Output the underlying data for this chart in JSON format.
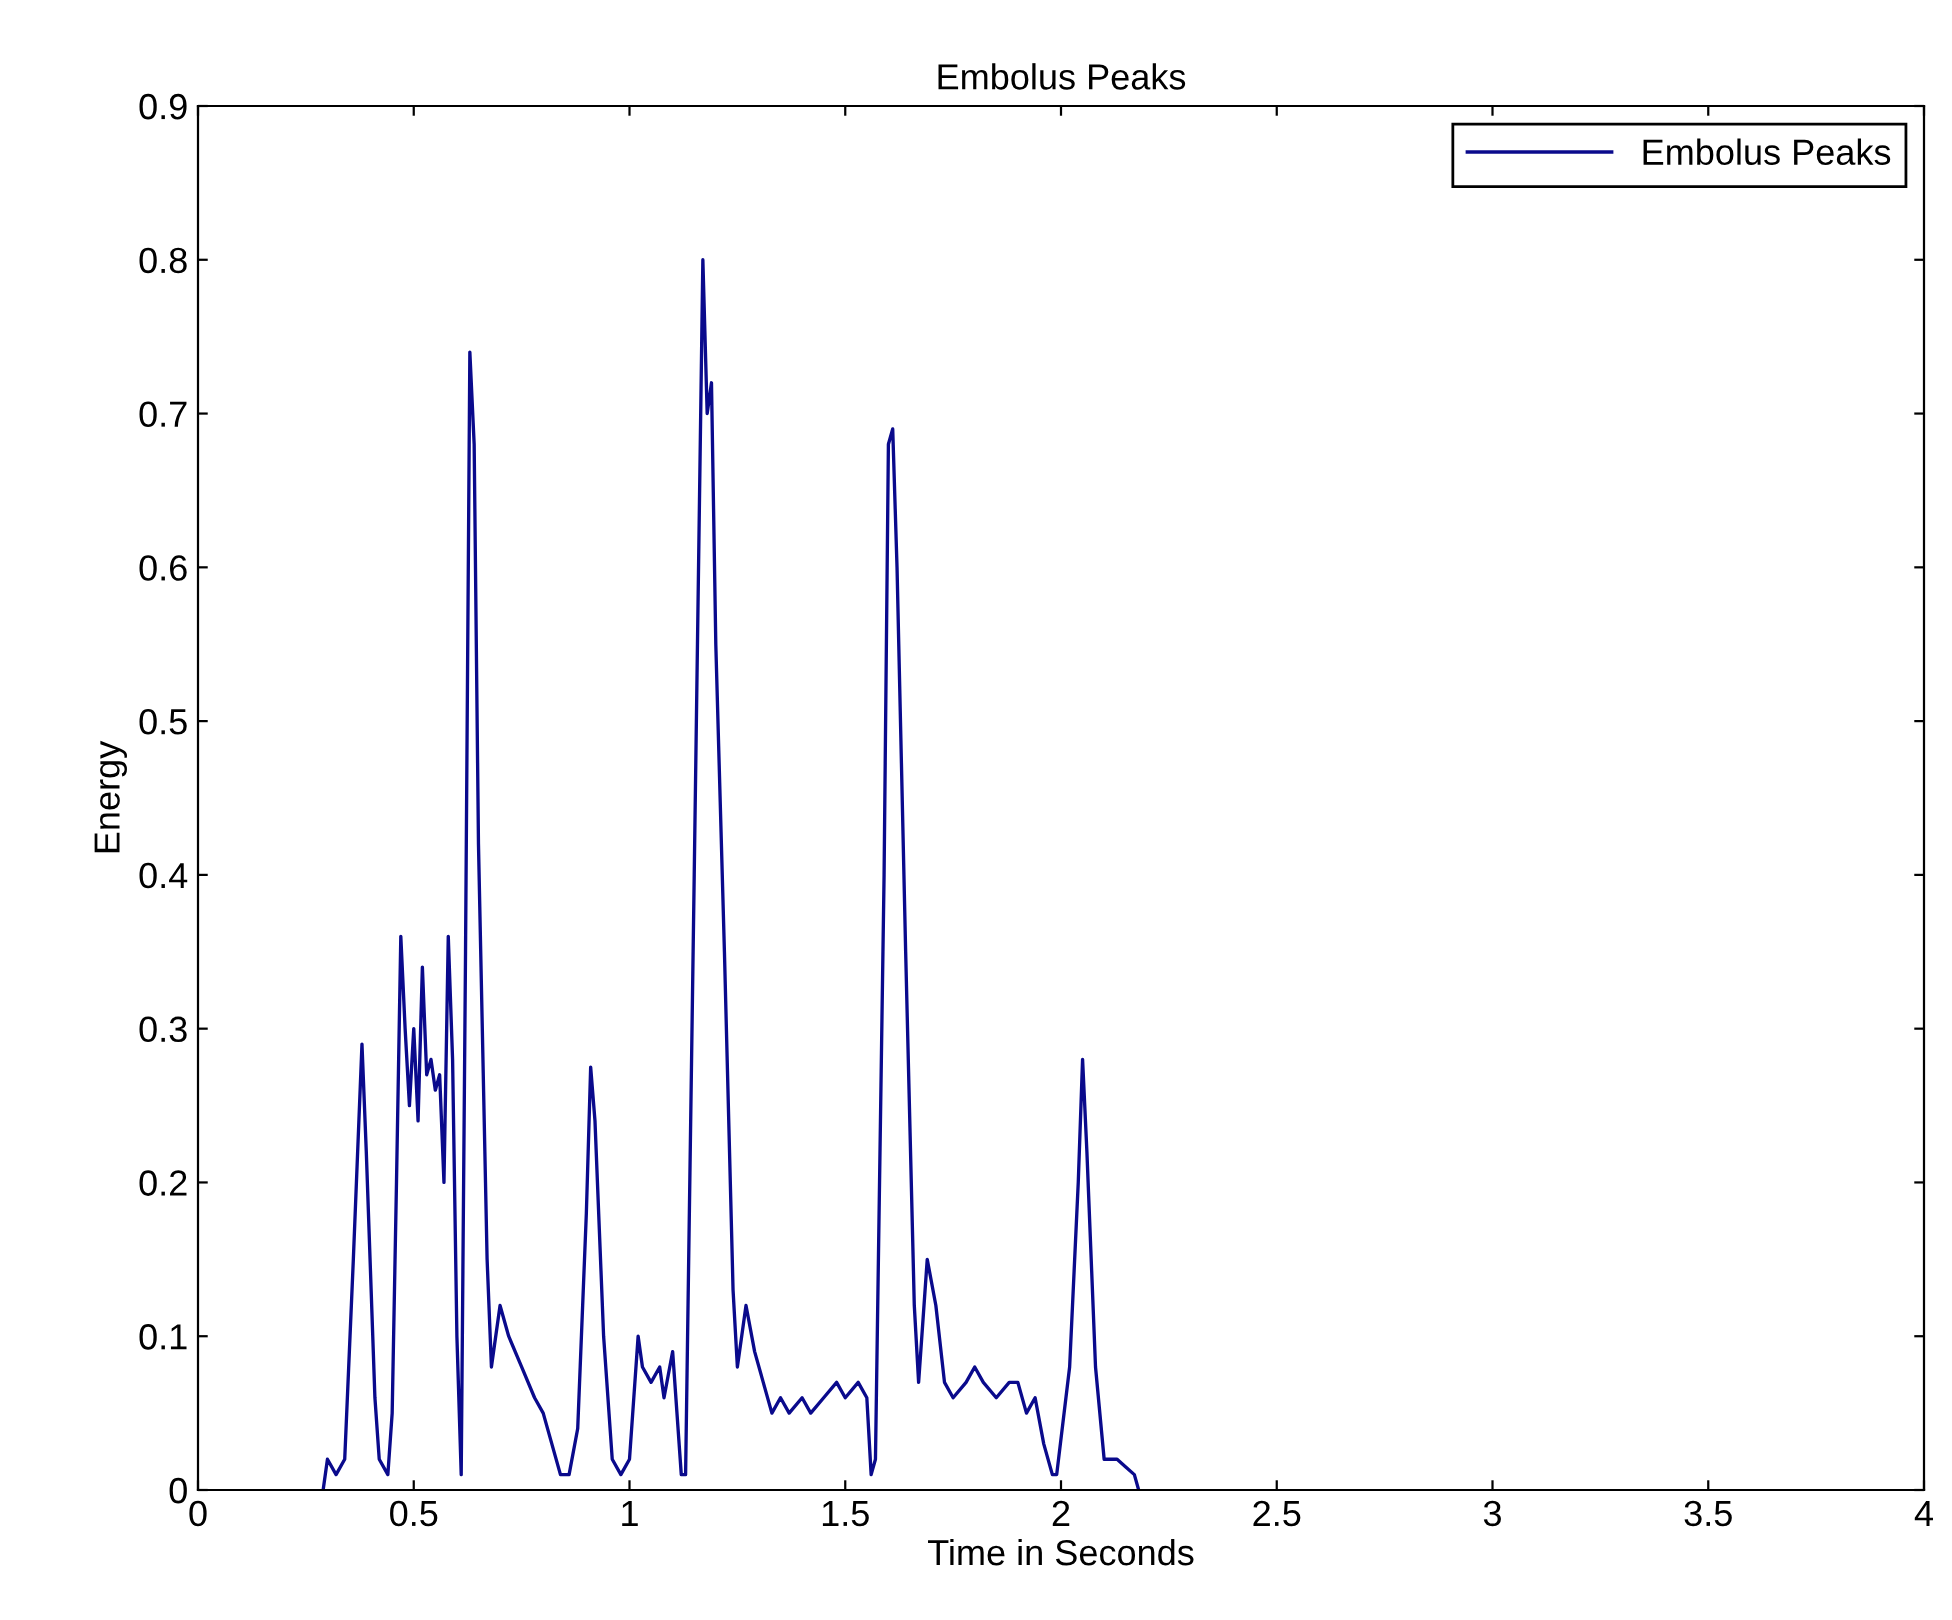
{
  "chart_data": {
    "type": "line",
    "title": "Embolus Peaks",
    "xlabel": "Time in Seconds",
    "ylabel": "Energy",
    "xlim": [
      0,
      4
    ],
    "xticks": [
      0,
      0.5,
      1,
      1.5,
      2,
      2.5,
      3,
      3.5,
      4
    ],
    "ylim": [
      0,
      0.9
    ],
    "yticks": [
      0,
      0.1,
      0.2,
      0.3,
      0.4,
      0.5,
      0.6,
      0.7,
      0.8,
      0.9
    ],
    "grid": false,
    "legend": "top right",
    "series": [
      {
        "name": "Embolus Peaks",
        "color": "#0a0a8c",
        "x": [
          0.29,
          0.3,
          0.32,
          0.34,
          0.36,
          0.38,
          0.39,
          0.41,
          0.42,
          0.44,
          0.45,
          0.46,
          0.47,
          0.48,
          0.49,
          0.5,
          0.51,
          0.52,
          0.53,
          0.54,
          0.55,
          0.56,
          0.57,
          0.58,
          0.59,
          0.6,
          0.61,
          0.62,
          0.63,
          0.64,
          0.65,
          0.67,
          0.68,
          0.7,
          0.72,
          0.75,
          0.78,
          0.8,
          0.82,
          0.84,
          0.86,
          0.88,
          0.9,
          0.91,
          0.92,
          0.94,
          0.96,
          0.98,
          1.0,
          1.02,
          1.03,
          1.05,
          1.07,
          1.08,
          1.1,
          1.11,
          1.12,
          1.13,
          1.15,
          1.17,
          1.18,
          1.19,
          1.2,
          1.22,
          1.24,
          1.25,
          1.27,
          1.29,
          1.31,
          1.33,
          1.35,
          1.37,
          1.4,
          1.42,
          1.45,
          1.48,
          1.5,
          1.53,
          1.55,
          1.56,
          1.57,
          1.59,
          1.6,
          1.61,
          1.62,
          1.64,
          1.66,
          1.67,
          1.69,
          1.71,
          1.73,
          1.75,
          1.78,
          1.8,
          1.82,
          1.85,
          1.88,
          1.9,
          1.92,
          1.94,
          1.96,
          1.98,
          1.99,
          2.02,
          2.04,
          2.05,
          2.06,
          2.08,
          2.1,
          2.13,
          2.15,
          2.17,
          2.18
        ],
        "values": [
          0.0,
          0.02,
          0.01,
          0.02,
          0.15,
          0.29,
          0.22,
          0.06,
          0.02,
          0.01,
          0.05,
          0.2,
          0.36,
          0.3,
          0.25,
          0.3,
          0.24,
          0.34,
          0.27,
          0.28,
          0.26,
          0.27,
          0.2,
          0.36,
          0.28,
          0.1,
          0.01,
          0.35,
          0.74,
          0.68,
          0.42,
          0.15,
          0.08,
          0.12,
          0.1,
          0.08,
          0.06,
          0.05,
          0.03,
          0.01,
          0.01,
          0.04,
          0.18,
          0.275,
          0.24,
          0.1,
          0.02,
          0.01,
          0.02,
          0.1,
          0.08,
          0.07,
          0.08,
          0.06,
          0.09,
          0.05,
          0.01,
          0.01,
          0.4,
          0.8,
          0.7,
          0.72,
          0.55,
          0.35,
          0.13,
          0.08,
          0.12,
          0.09,
          0.07,
          0.05,
          0.06,
          0.05,
          0.06,
          0.05,
          0.06,
          0.07,
          0.06,
          0.07,
          0.06,
          0.01,
          0.02,
          0.4,
          0.68,
          0.69,
          0.6,
          0.35,
          0.12,
          0.07,
          0.15,
          0.12,
          0.07,
          0.06,
          0.07,
          0.08,
          0.07,
          0.06,
          0.07,
          0.07,
          0.05,
          0.06,
          0.03,
          0.01,
          0.01,
          0.08,
          0.2,
          0.28,
          0.22,
          0.08,
          0.02,
          0.02,
          0.015,
          0.01,
          0.0
        ]
      }
    ]
  }
}
